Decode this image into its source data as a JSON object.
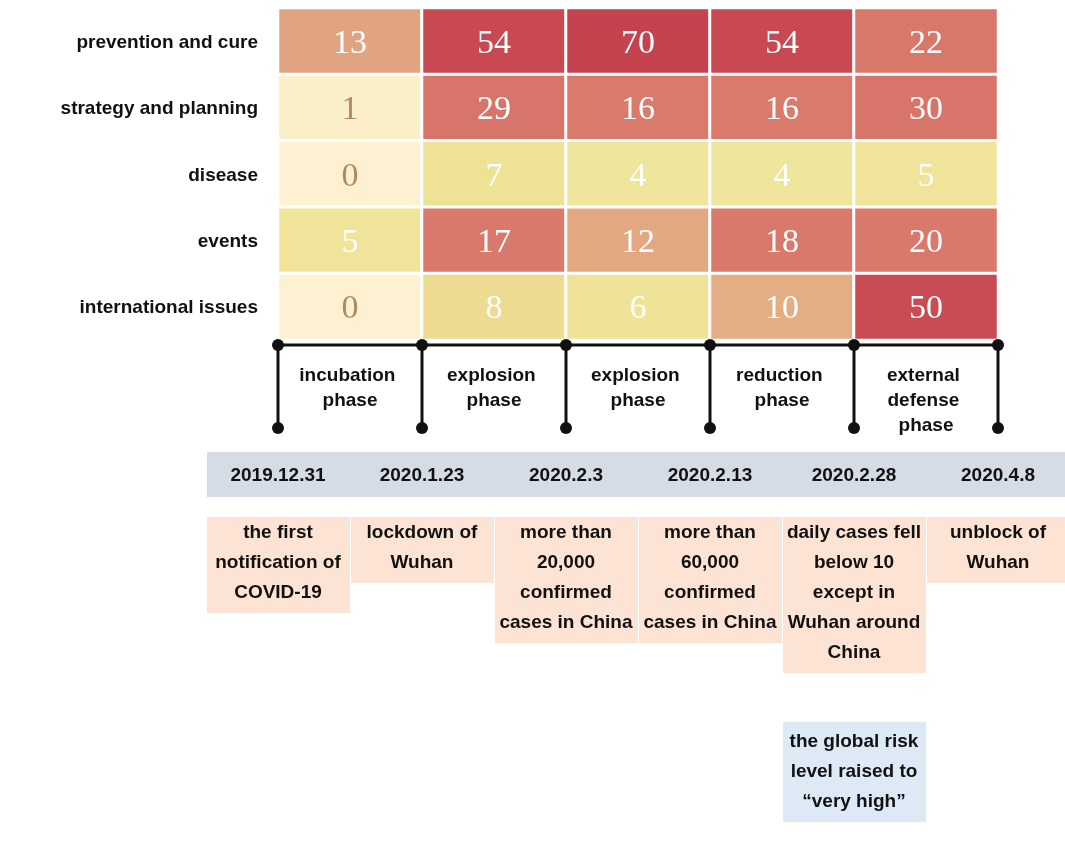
{
  "chart_data": {
    "type": "heatmap",
    "categories": [
      "incubation phase",
      "explosion phase",
      "explosion phase",
      "reduction phase",
      "external defense phase"
    ],
    "y_categories": [
      "prevention and cure",
      "strategy and planning",
      "disease",
      "events",
      "international issues"
    ],
    "cells": [
      [
        13,
        54,
        70,
        54,
        22
      ],
      [
        1,
        29,
        16,
        16,
        30
      ],
      [
        0,
        7,
        4,
        4,
        5
      ],
      [
        5,
        17,
        12,
        18,
        20
      ],
      [
        0,
        8,
        6,
        10,
        50
      ]
    ],
    "data_labels": true,
    "annotations": [
      "2019.12.31",
      "2020.1.23",
      "2020.2.3",
      "2020.2.13",
      "2020.2.28",
      "2020.4.8",
      "the first notification of COVID-19",
      "lockdown of Wuhan",
      "more than 20,000 confirmed cases in China",
      "more than 60,000 confirmed cases in China",
      "daily cases fell below 10 except in Wuhan around China",
      "unblock of Wuhan",
      "the global risk level raised to “very high”"
    ]
  }
}
